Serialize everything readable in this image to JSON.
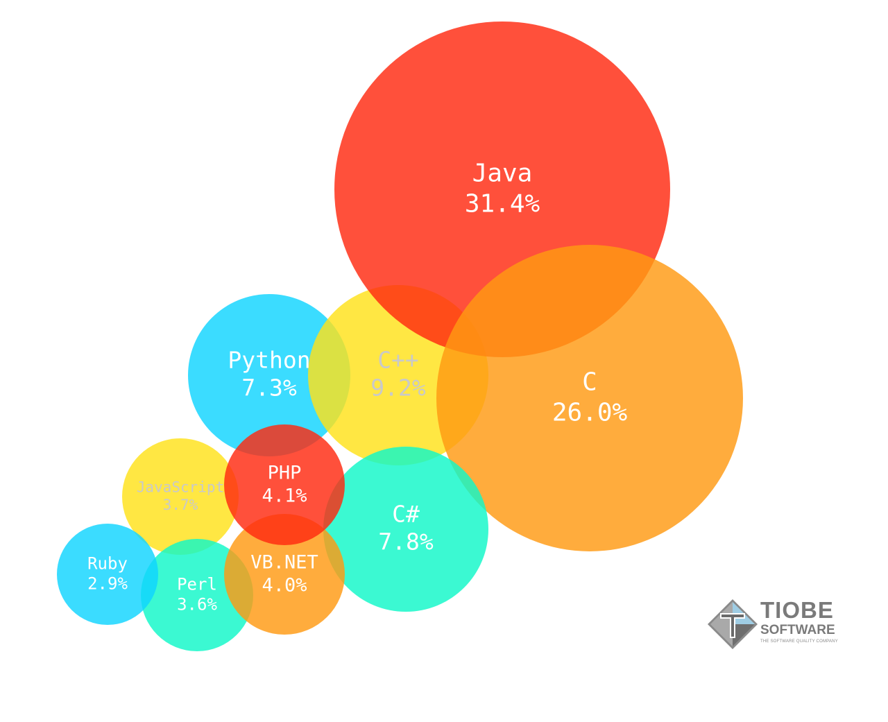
{
  "chart_data": {
    "type": "bubble",
    "series": [
      {
        "name": "Java",
        "value": "31.4%",
        "share": 31.4,
        "color": "#ff2a10",
        "label_color": "#ffffff"
      },
      {
        "name": "C",
        "value": "26.0%",
        "share": 26.0,
        "color": "#ff9a12",
        "label_color": "#ffffff"
      },
      {
        "name": "C++",
        "value": "9.2%",
        "share": 9.2,
        "color": "#ffe21a",
        "label_color": "#c9c9c9"
      },
      {
        "name": "C#",
        "value": "7.8%",
        "share": 7.8,
        "color": "#10f8c8",
        "label_color": "#ffffff"
      },
      {
        "name": "Python",
        "value": "7.3%",
        "share": 7.3,
        "color": "#10d4ff",
        "label_color": "#ffffff"
      },
      {
        "name": "PHP",
        "value": "4.1%",
        "share": 4.1,
        "color": "#ff2a10",
        "label_color": "#ffffff"
      },
      {
        "name": "VB.NET",
        "value": "4.0%",
        "share": 4.0,
        "color": "#ff9a12",
        "label_color": "#ffffff"
      },
      {
        "name": "JavaScript",
        "value": "3.7%",
        "share": 3.7,
        "color": "#ffe21a",
        "label_color": "#c9c9c9"
      },
      {
        "name": "Perl",
        "value": "3.6%",
        "share": 3.6,
        "color": "#10f8c8",
        "label_color": "#ffffff"
      },
      {
        "name": "Ruby",
        "value": "2.9%",
        "share": 2.9,
        "color": "#10d4ff",
        "label_color": "#ffffff"
      }
    ]
  },
  "logo": {
    "line1": "TIOBE",
    "line2": "SOFTWARE",
    "tagline": "THE SOFTWARE QUALITY COMPANY"
  }
}
